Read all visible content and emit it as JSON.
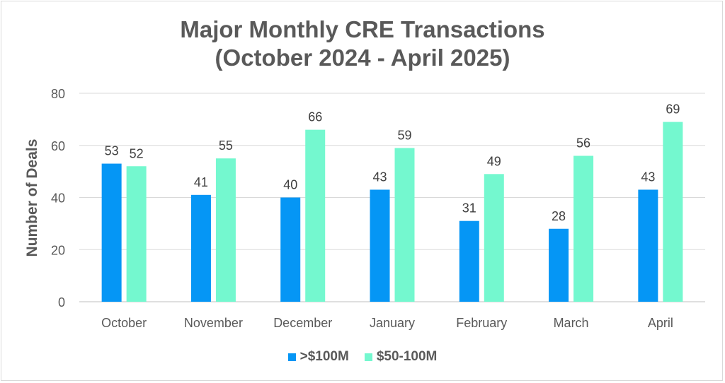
{
  "chart_data": {
    "type": "bar",
    "title": [
      "Major Monthly CRE Transactions",
      "(October 2024 - April 2025)"
    ],
    "xlabel": "",
    "ylabel": "Number of Deals",
    "ylim": [
      0,
      80
    ],
    "yticks": [
      0,
      20,
      40,
      60,
      80
    ],
    "grid": true,
    "legend_position": "bottom",
    "categories": [
      "October",
      "November",
      "December",
      "January",
      "February",
      "March",
      "April"
    ],
    "series": [
      {
        "name": ">$100M",
        "color": "#0596f5",
        "values": [
          53,
          41,
          40,
          43,
          31,
          28,
          43
        ]
      },
      {
        "name": "$50-100M",
        "color": "#74f8cf",
        "values": [
          52,
          55,
          66,
          59,
          49,
          56,
          69
        ]
      }
    ]
  }
}
